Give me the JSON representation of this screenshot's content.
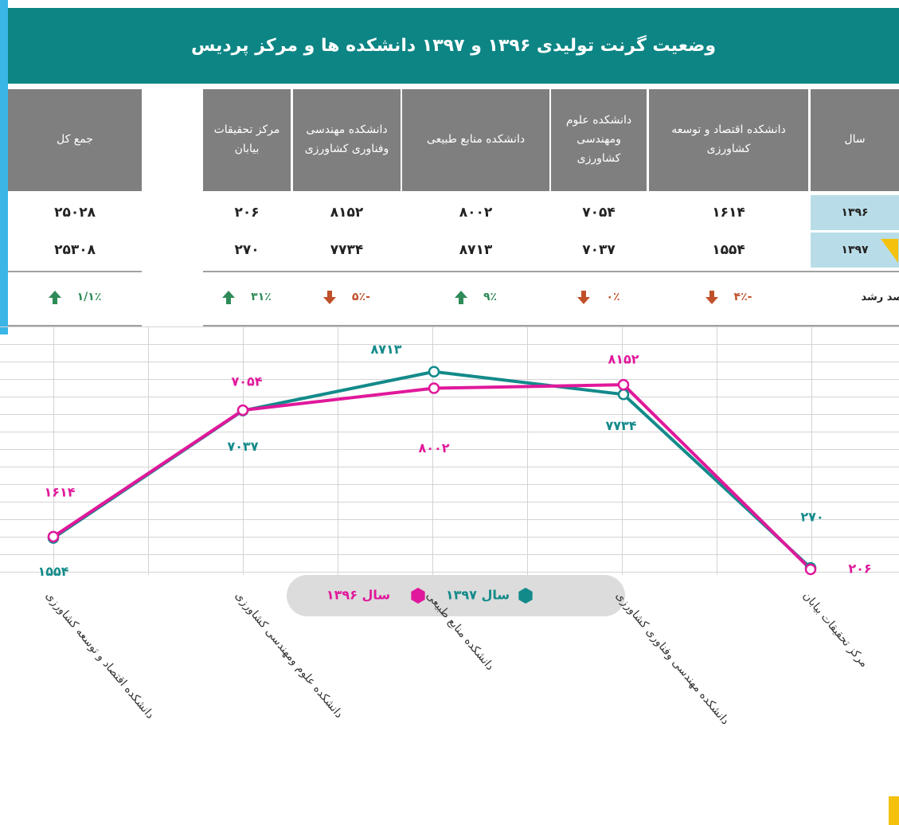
{
  "header": {
    "title": "وضعیت گرنت تولیدی ۱۳۹۶ و ۱۳۹۷ دانشکده ها و مرکز پردیس"
  },
  "table": {
    "columns": [
      "سال",
      "دانشکده اقتصاد و توسعه کشاورزی",
      "دانشکده علوم ومهندسی کشاورزی",
      "دانشکده منابع طبیعی",
      "دانشکده مهندسی وفناوری کشاورزی",
      "مرکز تحقیقات بیابان",
      "جمع کل"
    ],
    "rows": [
      [
        "۱۳۹۶",
        "۱۶۱۴",
        "۷۰۵۴",
        "۸۰۰۲",
        "۸۱۵۲",
        "۲۰۶",
        "۲۵۰۲۸"
      ],
      [
        "۱۳۹۷",
        "۱۵۵۴",
        "۷۰۳۷",
        "۸۷۱۳",
        "۷۷۳۴",
        "۲۷۰",
        "۲۵۳۰۸"
      ]
    ],
    "growth": {
      "label": "درصد رشد",
      "values": [
        "-۴٪",
        "۰٪",
        "۹٪",
        "-۵٪",
        "۳۱٪",
        "۱/۱٪"
      ],
      "directions": [
        "down",
        "down",
        "up",
        "down",
        "up",
        "up"
      ]
    }
  },
  "chart_data": {
    "type": "line",
    "categories": [
      "دانشکده اقتصاد و توسعه کشاورزی",
      "دانشکده علوم ومهندسی کشاورزی",
      "دانشکده منابع طبیعی",
      "دانشکده مهندسی وفناوری کشاورزی",
      "مرکز تحقیقات بیابان"
    ],
    "series": [
      {
        "name": "سال ۱۳۹۷",
        "color": "#138a8a",
        "values": [
          1554,
          7037,
          8713,
          7734,
          270
        ],
        "value_labels": [
          "۱۵۵۴",
          "۷۰۳۷",
          "۸۷۱۳",
          "۷۷۳۴",
          "۲۷۰"
        ]
      },
      {
        "name": "سال ۱۳۹۶",
        "color": "#e0189b",
        "values": [
          1614,
          7054,
          8002,
          8152,
          206
        ],
        "value_labels": [
          "۱۶۱۴",
          "۷۰۵۴",
          "۸۰۰۲",
          "۸۱۵۲",
          "۲۰۶"
        ]
      }
    ],
    "ylim": [
      0,
      11000
    ]
  }
}
